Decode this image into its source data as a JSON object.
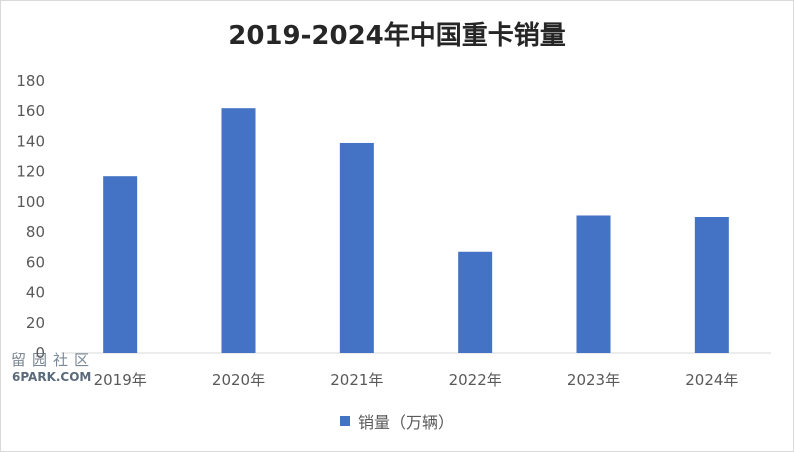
{
  "chart_data": {
    "type": "bar",
    "title": "2019-2024年中国重卡销量",
    "categories": [
      "2019年",
      "2020年",
      "2021年",
      "2022年",
      "2023年",
      "2024年"
    ],
    "series": [
      {
        "name": "销量（万辆）",
        "values": [
          117,
          162,
          139,
          67,
          91,
          90
        ]
      }
    ],
    "xlabel": "",
    "ylabel": "",
    "ylim": [
      0,
      180
    ],
    "yticks": [
      0,
      20,
      40,
      60,
      80,
      100,
      120,
      140,
      160,
      180
    ],
    "grid": false,
    "legend_position": "bottom",
    "colors": {
      "bar": "#4472c4",
      "axis": "#d9d9d9",
      "text": "#595959"
    }
  },
  "watermark": {
    "chars": "留园社区",
    "site": "6PARK.COM"
  }
}
